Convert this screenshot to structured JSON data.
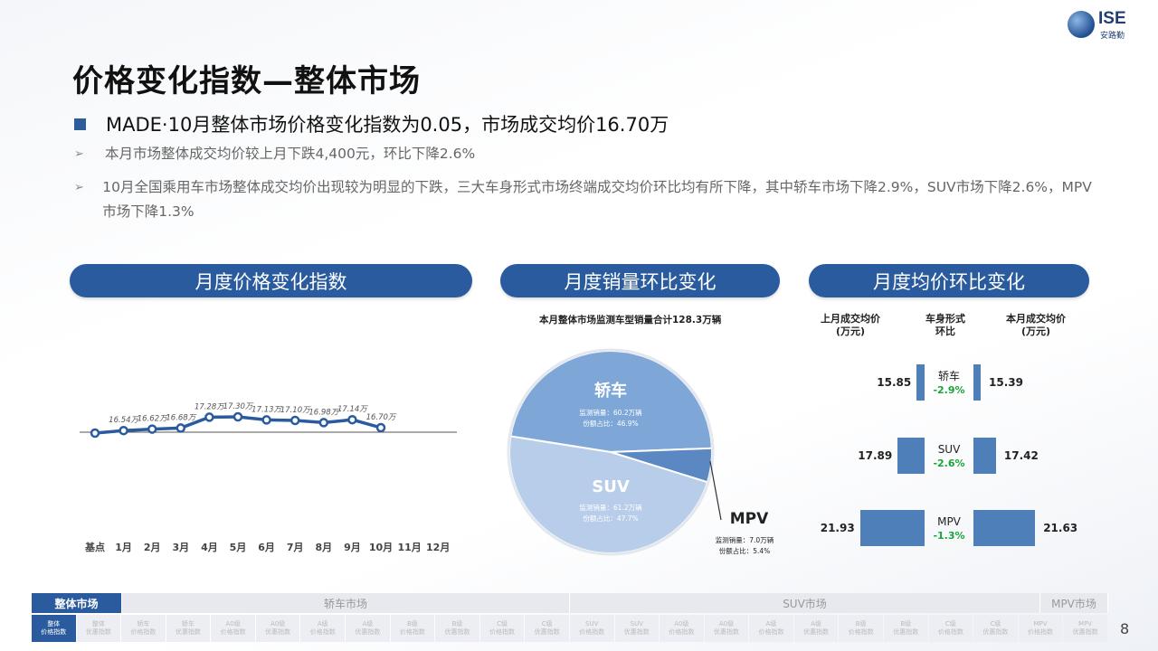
{
  "logo": {
    "word": "ISE",
    "sub": "安路勤"
  },
  "title": "价格变化指数—整体市场",
  "headline": "MADE·10月整体市场价格变化指数为0.05，市场成交均价16.70万",
  "bullets": [
    "本月市场整体成交均价较上月下跌4,400元，环比下降2.6%",
    "10月全国乘用车市场整体成交均价出现较为明显的下跌，三大车身形式市场终端成交均价环比均有所下降，其中轿车市场下降2.9%，SUV市场下降2.6%，MPV市场下降1.3%"
  ],
  "sections": {
    "price_index": "月度价格变化指数",
    "sales_change": "月度销量环比变化",
    "avg_price_change": "月度均价环比变化"
  },
  "chart_data": [
    {
      "type": "line",
      "categories": [
        "基点",
        "1月",
        "2月",
        "3月",
        "4月",
        "5月",
        "6月",
        "7月",
        "8月",
        "9月",
        "10月",
        "11月",
        "12月"
      ],
      "values": [
        16.4,
        16.54,
        16.62,
        16.68,
        17.28,
        17.3,
        17.13,
        17.1,
        16.98,
        17.14,
        16.7,
        null,
        null
      ],
      "labels": [
        "",
        "16.54万",
        "16.62万",
        "16.68万",
        "17.28万",
        "17.30万",
        "17.13万",
        "17.10万",
        "16.98万",
        "17.14万",
        "16.70万",
        "",
        ""
      ],
      "color": "#2a5b9e"
    },
    {
      "type": "pie",
      "title": "本月整体市场监测车型销量合计128.3万辆",
      "slices": [
        {
          "name": "轿车",
          "value": 46.9,
          "volume_label": "监测销量：60.2万辆",
          "share_label": "份额占比：46.9%",
          "color": "#7ea7d8"
        },
        {
          "name": "MPV",
          "value": 5.4,
          "volume_label": "监测销量：7.0万辆",
          "share_label": "份额占比：5.4%",
          "color": "#5b88c2"
        },
        {
          "name": "SUV",
          "value": 47.7,
          "volume_label": "监测销量：61.2万辆",
          "share_label": "份额占比：47.7%",
          "color": "#b7cde9"
        }
      ]
    },
    {
      "type": "bar",
      "headers": {
        "left": "上月成交均价\n(万元)",
        "mid": "车身形式\n环比",
        "right": "本月成交均价\n(万元)"
      },
      "rows": [
        {
          "name": "轿车",
          "change": "-2.9%",
          "prev": 15.85,
          "curr": 15.39
        },
        {
          "name": "SUV",
          "change": "-2.6%",
          "prev": 17.89,
          "curr": 17.42
        },
        {
          "name": "MPV",
          "change": "-1.3%",
          "prev": 21.93,
          "curr": 21.63
        }
      ]
    }
  ],
  "footer": {
    "groups": [
      {
        "label": "整体市场",
        "active": true
      },
      {
        "label": "轿车市场",
        "active": false
      },
      {
        "label": "SUV市场",
        "active": false
      },
      {
        "label": "MPV市场",
        "active": false
      }
    ],
    "cells": [
      {
        "label": "整体\n价格指数",
        "active": true
      },
      {
        "label": "整体\n优惠指数"
      },
      {
        "label": "轿车\n价格指数"
      },
      {
        "label": "轿车\n优惠指数"
      },
      {
        "label": "A0级\n价格指数"
      },
      {
        "label": "A0级\n优惠指数"
      },
      {
        "label": "A级\n价格指数"
      },
      {
        "label": "A级\n优惠指数"
      },
      {
        "label": "B级\n价格指数"
      },
      {
        "label": "B级\n优惠指数"
      },
      {
        "label": "C级\n价格指数"
      },
      {
        "label": "C级\n优惠指数"
      },
      {
        "label": "SUV\n价格指数"
      },
      {
        "label": "SUV\n优惠指数"
      },
      {
        "label": "A0级\n价格指数"
      },
      {
        "label": "A0级\n优惠指数"
      },
      {
        "label": "A级\n价格指数"
      },
      {
        "label": "A级\n优惠指数"
      },
      {
        "label": "B级\n价格指数"
      },
      {
        "label": "B级\n优惠指数"
      },
      {
        "label": "C级\n价格指数"
      },
      {
        "label": "C级\n优惠指数"
      },
      {
        "label": "MPV\n价格指数"
      },
      {
        "label": "MPV\n优惠指数"
      }
    ]
  },
  "page_number": "8"
}
